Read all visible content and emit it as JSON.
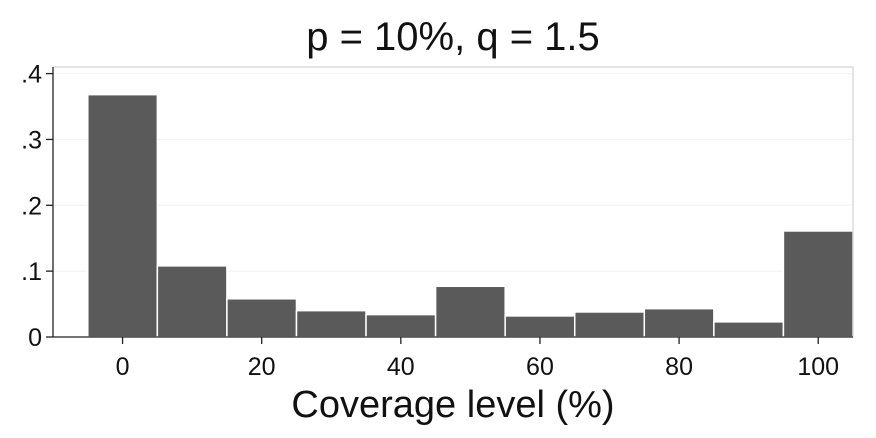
{
  "chart_data": {
    "type": "bar",
    "title": "p = 10%, q = 1.5",
    "xlabel": "Coverage level (%)",
    "ylabel": "",
    "bin_centers": [
      0,
      10,
      20,
      30,
      40,
      50,
      60,
      70,
      80,
      90,
      100
    ],
    "bin_width": 10,
    "values": [
      0.368,
      0.108,
      0.058,
      0.04,
      0.034,
      0.077,
      0.032,
      0.038,
      0.043,
      0.023,
      0.161
    ],
    "xlim": [
      -10,
      105
    ],
    "ylim": [
      0,
      0.41
    ],
    "xticks": [
      0,
      20,
      40,
      60,
      80,
      100
    ],
    "xtick_labels": [
      "0",
      "20",
      "40",
      "60",
      "80",
      "100"
    ],
    "yticks": [
      0,
      0.1,
      0.2,
      0.3,
      0.4
    ],
    "ytick_labels": [
      "0",
      ".1",
      ".2",
      ".3",
      ".4"
    ],
    "grid": true,
    "legend": "none",
    "colors": {
      "bar_fill": "#5a5a5a",
      "bar_edge": "#ffffff",
      "grid": "#f2f2f2",
      "axis": "#222222",
      "frame": "#c8c8c8"
    }
  }
}
